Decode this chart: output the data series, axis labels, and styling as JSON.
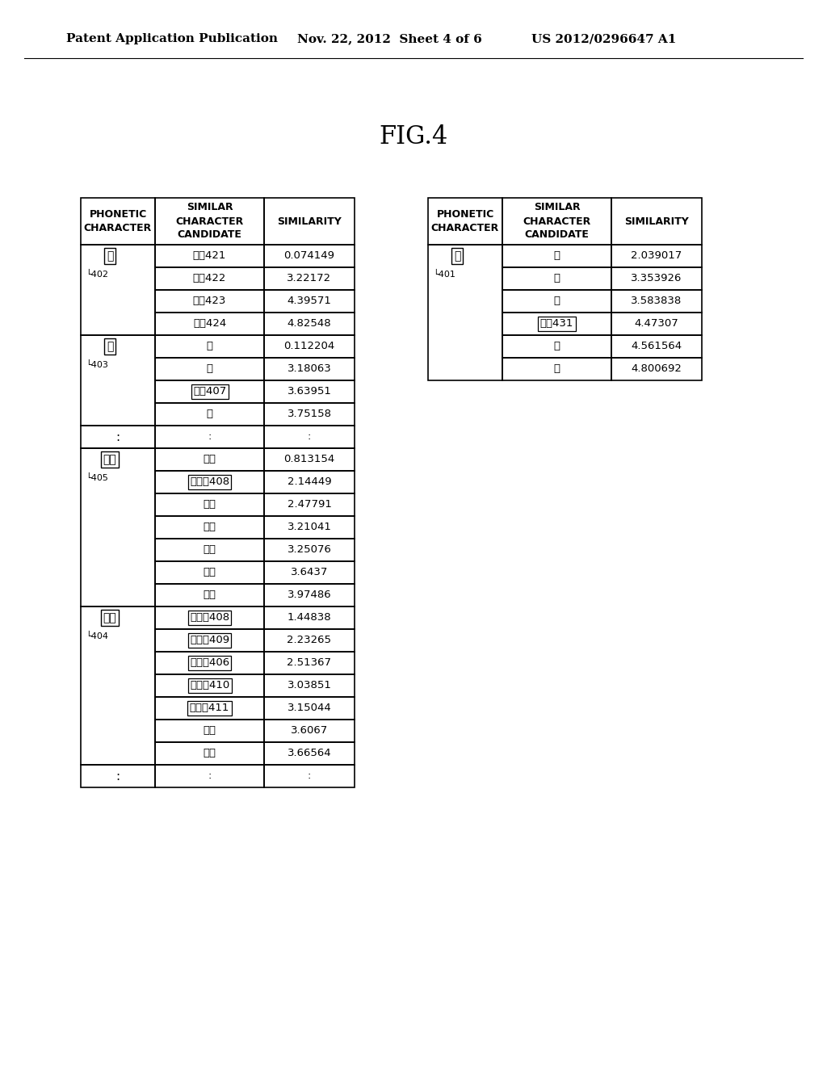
{
  "title": "FIG.4",
  "header_line1": "Patent Application Publication",
  "header_line2": "Nov. 22, 2012  Sheet 4 of 6",
  "header_line3": "US 2012/0296647 A1",
  "bg_color": "#ffffff",
  "col_headers": [
    "PHONETIC\nCHARACTER",
    "SIMILAR\nCHARACTER\nCANDIDATE",
    "SIMILARITY"
  ],
  "left_rows": [
    {
      "phonetic": "あ",
      "boxed": true,
      "label": "402",
      "rows": [
        {
          "cand": "あ〜421",
          "cand_boxed": false,
          "sim": "0.074149"
        },
        {
          "cand": "お〜422",
          "cand_boxed": false,
          "sim": "3.22172"
        },
        {
          "cand": "え〜423",
          "cand_boxed": false,
          "sim": "4.39571"
        },
        {
          "cand": "ん〜424",
          "cand_boxed": false,
          "sim": "4.82548"
        }
      ]
    },
    {
      "phonetic": "い",
      "boxed": true,
      "label": "403",
      "rows": [
        {
          "cand": "い",
          "cand_boxed": false,
          "sim": "0.112204"
        },
        {
          "cand": "え",
          "cand_boxed": false,
          "sim": "3.18063"
        },
        {
          "cand": "う〜407",
          "cand_boxed": true,
          "sim": "3.63951"
        },
        {
          "cand": "口",
          "cand_boxed": false,
          "sim": "3.75158"
        }
      ]
    },
    {
      "phonetic": ":",
      "boxed": false,
      "label": "",
      "rows": [
        {
          "cand": ":",
          "cand_boxed": false,
          "sim": ":"
        }
      ]
    },
    {
      "phonetic": "きよ",
      "boxed": true,
      "label": "405",
      "rows": [
        {
          "cand": "きよ",
          "cand_boxed": false,
          "sim": "0.813154"
        },
        {
          "cand": "ぎよ〜408",
          "cand_boxed": true,
          "sim": "2.14449"
        },
        {
          "cand": "びよ",
          "cand_boxed": false,
          "sim": "2.47791"
        },
        {
          "cand": "ひよ",
          "cand_boxed": false,
          "sim": "3.21041"
        },
        {
          "cand": "ちよ",
          "cand_boxed": false,
          "sim": "3.25076"
        },
        {
          "cand": "きゆ",
          "cand_boxed": false,
          "sim": "3.6437"
        },
        {
          "cand": "きや",
          "cand_boxed": false,
          "sim": "3.97486"
        }
      ]
    },
    {
      "phonetic": "ぎよ",
      "boxed": true,
      "label": "404",
      "rows": [
        {
          "cand": "ぎよ〜408",
          "cand_boxed": true,
          "sim": "1.44838"
        },
        {
          "cand": "きよ〜409",
          "cand_boxed": true,
          "sim": "2.23265"
        },
        {
          "cand": "ひよ〜406",
          "cand_boxed": true,
          "sim": "2.51367"
        },
        {
          "cand": "りよ〜410",
          "cand_boxed": true,
          "sim": "3.03851"
        },
        {
          "cand": "びよ〜411",
          "cand_boxed": true,
          "sim": "3.15044"
        },
        {
          "cand": "によ",
          "cand_boxed": false,
          "sim": "3.6067"
        },
        {
          "cand": "びよ",
          "cand_boxed": false,
          "sim": "3.66564"
        }
      ]
    },
    {
      "phonetic": ":",
      "boxed": false,
      "label": "",
      "rows": [
        {
          "cand": ":",
          "cand_boxed": false,
          "sim": ":"
        }
      ]
    }
  ],
  "right_rows": [
    {
      "phonetic": "口",
      "boxed": true,
      "label": "401",
      "rows": [
        {
          "cand": "っ",
          "cand_boxed": false,
          "sim": "2.039017"
        },
        {
          "cand": "う",
          "cand_boxed": false,
          "sim": "3.353926"
        },
        {
          "cand": "い",
          "cand_boxed": false,
          "sim": "3.583838"
        },
        {
          "cand": "お〜431",
          "cand_boxed": true,
          "sim": "4.47307"
        },
        {
          "cand": "あ",
          "cand_boxed": false,
          "sim": "4.561564"
        },
        {
          "cand": "え",
          "cand_boxed": false,
          "sim": "4.800692"
        }
      ]
    }
  ]
}
